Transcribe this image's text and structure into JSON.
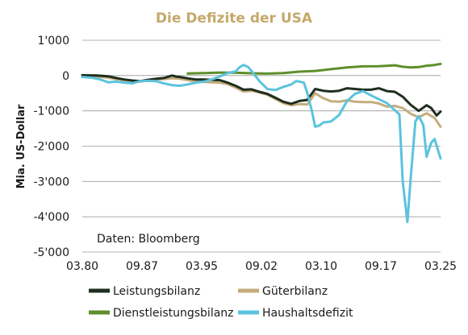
{
  "chart_data": {
    "type": "line",
    "title": "Die Defizite der USA",
    "ylabel": "Mia. US-Dollar",
    "xlabel": "",
    "annotation": "Daten: Bloomberg",
    "x_range": [
      "1980-03",
      "2025-03"
    ],
    "x_ticks": [
      {
        "label": "03.80",
        "x": "1980-03"
      },
      {
        "label": "09.87",
        "x": "1987-09"
      },
      {
        "label": "03.95",
        "x": "1995-03"
      },
      {
        "label": "09.02",
        "x": "2002-09"
      },
      {
        "label": "03.10",
        "x": "2010-03"
      },
      {
        "label": "09.17",
        "x": "2017-09"
      },
      {
        "label": "03.25",
        "x": "2025-03"
      }
    ],
    "ylim": [
      -5000,
      1000
    ],
    "y_ticks": [
      {
        "label": "1'000",
        "value": 1000
      },
      {
        "label": "0",
        "value": 0
      },
      {
        "label": "-1'000",
        "value": -1000
      },
      {
        "label": "-2'000",
        "value": -2000
      },
      {
        "label": "-3'000",
        "value": -3000
      },
      {
        "label": "-4'000",
        "value": -4000
      },
      {
        "label": "-5'000",
        "value": -5000
      }
    ],
    "grid": true,
    "legend_position": "bottom",
    "colors": {
      "title": "#c4a96b",
      "grid": "#9a9a9a",
      "Leistungsbilanz": "#1f2e1f",
      "Güterbilanz": "#c4ad7c",
      "Dienstleistungsbilanz": "#5d8f2a",
      "Haushaltsdefizit": "#5bc3dd"
    },
    "series": [
      {
        "name": "Leistungsbilanz",
        "points": [
          [
            "1980-03",
            10
          ],
          [
            "1982-01",
            0
          ],
          [
            "1983-06",
            -20
          ],
          [
            "1984-06",
            -70
          ],
          [
            "1985-06",
            -110
          ],
          [
            "1986-06",
            -140
          ],
          [
            "1987-06",
            -160
          ],
          [
            "1988-06",
            -120
          ],
          [
            "1989-06",
            -90
          ],
          [
            "1990-06",
            -70
          ],
          [
            "1991-06",
            0
          ],
          [
            "1992-01",
            -30
          ],
          [
            "1992-06",
            -40
          ],
          [
            "1993-06",
            -80
          ],
          [
            "1994-06",
            -110
          ],
          [
            "1995-06",
            -110
          ],
          [
            "1996-06",
            -120
          ],
          [
            "1997-06",
            -130
          ],
          [
            "1998-06",
            -200
          ],
          [
            "1999-06",
            -290
          ],
          [
            "2000-06",
            -400
          ],
          [
            "2001-06",
            -390
          ],
          [
            "2002-06",
            -460
          ],
          [
            "2003-06",
            -520
          ],
          [
            "2004-06",
            -630
          ],
          [
            "2005-06",
            -740
          ],
          [
            "2006-06",
            -800
          ],
          [
            "2007-06",
            -720
          ],
          [
            "2008-06",
            -690
          ],
          [
            "2009-06",
            -380
          ],
          [
            "2010-06",
            -430
          ],
          [
            "2011-06",
            -450
          ],
          [
            "2012-06",
            -430
          ],
          [
            "2013-06",
            -360
          ],
          [
            "2014-06",
            -380
          ],
          [
            "2015-06",
            -400
          ],
          [
            "2016-06",
            -400
          ],
          [
            "2017-06",
            -360
          ],
          [
            "2018-06",
            -440
          ],
          [
            "2019-06",
            -460
          ],
          [
            "2020-06",
            -600
          ],
          [
            "2021-06",
            -830
          ],
          [
            "2022-06",
            -1000
          ],
          [
            "2023-06",
            -840
          ],
          [
            "2024-01",
            -920
          ],
          [
            "2024-09",
            -1130
          ],
          [
            "2025-03",
            -1020
          ]
        ]
      },
      {
        "name": "Güterbilanz",
        "points": [
          [
            "1980-03",
            -20
          ],
          [
            "1982-01",
            -30
          ],
          [
            "1983-06",
            -60
          ],
          [
            "1984-06",
            -100
          ],
          [
            "1985-06",
            -130
          ],
          [
            "1986-06",
            -150
          ],
          [
            "1987-06",
            -170
          ],
          [
            "1988-06",
            -140
          ],
          [
            "1989-06",
            -110
          ],
          [
            "1990-06",
            -100
          ],
          [
            "1991-06",
            -80
          ],
          [
            "1992-06",
            -90
          ],
          [
            "1993-06",
            -130
          ],
          [
            "1994-06",
            -170
          ],
          [
            "1995-06",
            -180
          ],
          [
            "1996-06",
            -190
          ],
          [
            "1997-06",
            -200
          ],
          [
            "1998-06",
            -240
          ],
          [
            "1999-06",
            -340
          ],
          [
            "2000-06",
            -450
          ],
          [
            "2001-06",
            -430
          ],
          [
            "2002-06",
            -480
          ],
          [
            "2003-06",
            -540
          ],
          [
            "2004-06",
            -660
          ],
          [
            "2005-06",
            -780
          ],
          [
            "2006-06",
            -840
          ],
          [
            "2007-06",
            -810
          ],
          [
            "2008-06",
            -820
          ],
          [
            "2009-06",
            -500
          ],
          [
            "2010-06",
            -640
          ],
          [
            "2011-06",
            -730
          ],
          [
            "2012-06",
            -740
          ],
          [
            "2013-06",
            -700
          ],
          [
            "2014-06",
            -740
          ],
          [
            "2015-06",
            -750
          ],
          [
            "2016-06",
            -750
          ],
          [
            "2017-06",
            -790
          ],
          [
            "2018-06",
            -880
          ],
          [
            "2019-06",
            -860
          ],
          [
            "2020-06",
            -920
          ],
          [
            "2021-06",
            -1080
          ],
          [
            "2022-06",
            -1180
          ],
          [
            "2023-06",
            -1070
          ],
          [
            "2024-06",
            -1200
          ],
          [
            "2025-03",
            -1450
          ]
        ]
      },
      {
        "name": "Dienstleistungsbilanz",
        "points": [
          [
            "1993-06",
            60
          ],
          [
            "1995-06",
            70
          ],
          [
            "1997-06",
            85
          ],
          [
            "1999-06",
            80
          ],
          [
            "2001-06",
            65
          ],
          [
            "2003-06",
            55
          ],
          [
            "2005-06",
            70
          ],
          [
            "2007-06",
            110
          ],
          [
            "2009-06",
            130
          ],
          [
            "2011-06",
            180
          ],
          [
            "2013-06",
            230
          ],
          [
            "2015-06",
            260
          ],
          [
            "2017-06",
            265
          ],
          [
            "2019-06",
            290
          ],
          [
            "2020-06",
            250
          ],
          [
            "2021-06",
            230
          ],
          [
            "2022-06",
            240
          ],
          [
            "2023-06",
            280
          ],
          [
            "2024-06",
            300
          ],
          [
            "2025-03",
            330
          ]
        ]
      },
      {
        "name": "Haushaltsdefizit",
        "points": [
          [
            "1980-03",
            -40
          ],
          [
            "1981-06",
            -60
          ],
          [
            "1982-06",
            -110
          ],
          [
            "1983-06",
            -190
          ],
          [
            "1984-06",
            -170
          ],
          [
            "1985-06",
            -200
          ],
          [
            "1986-06",
            -220
          ],
          [
            "1987-06",
            -160
          ],
          [
            "1988-06",
            -150
          ],
          [
            "1989-06",
            -160
          ],
          [
            "1990-06",
            -220
          ],
          [
            "1991-06",
            -270
          ],
          [
            "1992-06",
            -290
          ],
          [
            "1993-06",
            -250
          ],
          [
            "1994-06",
            -200
          ],
          [
            "1995-06",
            -170
          ],
          [
            "1996-06",
            -110
          ],
          [
            "1997-06",
            -30
          ],
          [
            "1998-06",
            70
          ],
          [
            "1999-06",
            120
          ],
          [
            "2000-01",
            250
          ],
          [
            "2000-06",
            300
          ],
          [
            "2001-01",
            240
          ],
          [
            "2001-06",
            130
          ],
          [
            "2002-06",
            -160
          ],
          [
            "2003-06",
            -380
          ],
          [
            "2004-06",
            -410
          ],
          [
            "2005-06",
            -320
          ],
          [
            "2006-06",
            -250
          ],
          [
            "2007-01",
            -160
          ],
          [
            "2007-06",
            -170
          ],
          [
            "2008-01",
            -200
          ],
          [
            "2008-06",
            -480
          ],
          [
            "2009-01",
            -1000
          ],
          [
            "2009-06",
            -1450
          ],
          [
            "2010-01",
            -1410
          ],
          [
            "2010-06",
            -1330
          ],
          [
            "2011-06",
            -1300
          ],
          [
            "2012-06",
            -1120
          ],
          [
            "2013-06",
            -720
          ],
          [
            "2014-06",
            -520
          ],
          [
            "2015-06",
            -440
          ],
          [
            "2016-06",
            -560
          ],
          [
            "2017-06",
            -670
          ],
          [
            "2018-06",
            -780
          ],
          [
            "2019-06",
            -980
          ],
          [
            "2020-01",
            -1100
          ],
          [
            "2020-06",
            -3000
          ],
          [
            "2021-01",
            -4150
          ],
          [
            "2021-06",
            -2900
          ],
          [
            "2022-01",
            -1300
          ],
          [
            "2022-06",
            -1150
          ],
          [
            "2023-01",
            -1400
          ],
          [
            "2023-06",
            -2300
          ],
          [
            "2024-01",
            -1900
          ],
          [
            "2024-06",
            -1800
          ],
          [
            "2025-03",
            -2350
          ]
        ]
      }
    ]
  }
}
